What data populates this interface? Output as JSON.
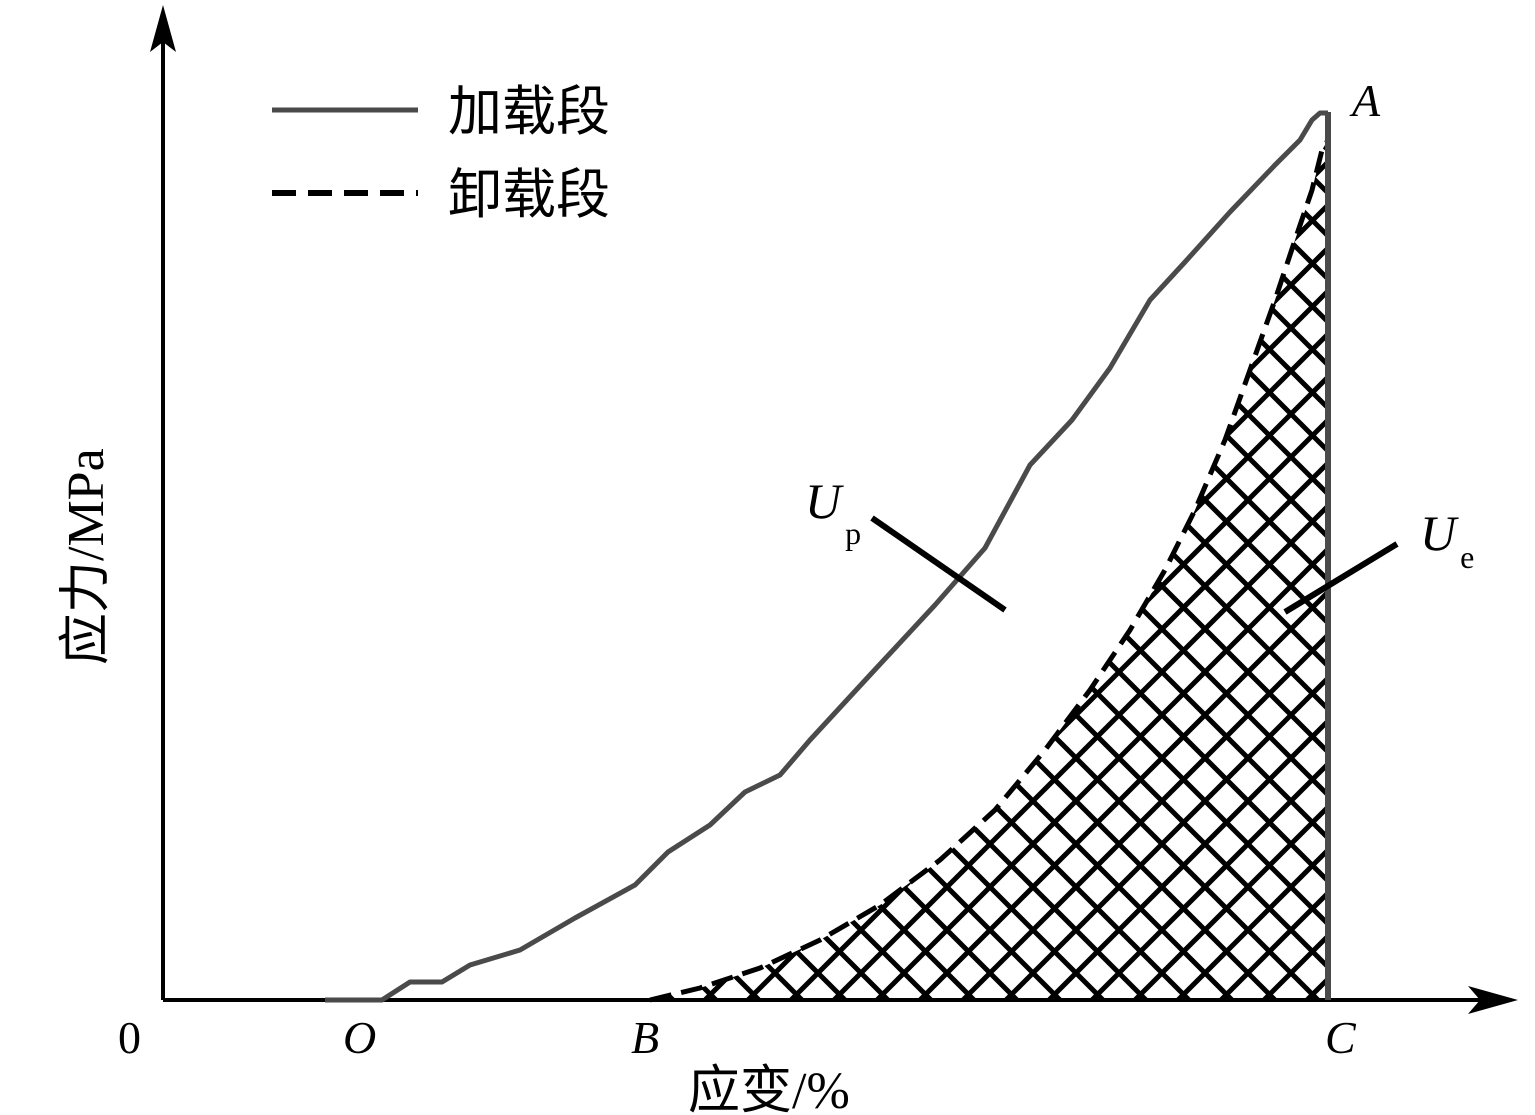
{
  "axes": {
    "origin_label": "0",
    "y_label": "应力/MPa",
    "x_label": "应变/%"
  },
  "points": {
    "O": "O",
    "B": "B",
    "C": "C",
    "A": "A"
  },
  "legend": {
    "loading": "加载段",
    "unloading": "卸载段"
  },
  "energy": {
    "up_main": "U",
    "up_sub": "p",
    "ue_main": "U",
    "ue_sub": "e"
  },
  "colors": {
    "loading_curve": "#4a4a4a",
    "unloading_curve": "#000000",
    "hatch": "#000000"
  }
}
